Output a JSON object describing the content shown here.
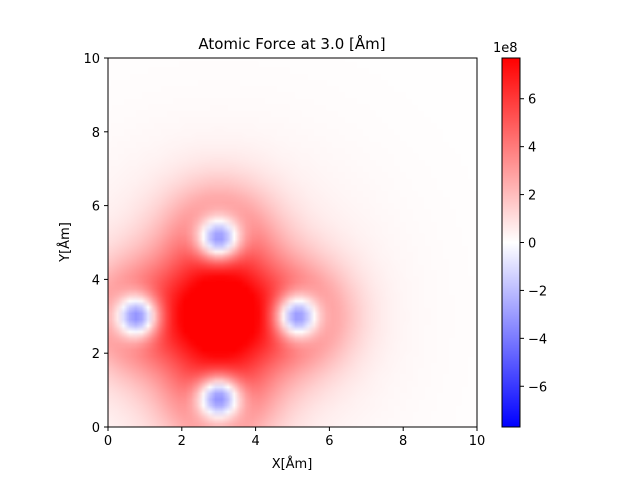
{
  "chart_data": {
    "type": "heatmap",
    "title": "Atomic Force at 3.0 [Åm]",
    "xlabel": "X[Åm]",
    "ylabel": "Y[Åm]",
    "xlim": [
      0,
      10
    ],
    "ylim": [
      0,
      10
    ],
    "x_ticks": [
      "0",
      "2",
      "4",
      "6",
      "8",
      "10"
    ],
    "y_ticks": [
      "0",
      "2",
      "4",
      "6",
      "8",
      "10"
    ],
    "colormap": "bwr",
    "colorbar": {
      "range": [
        -7.7,
        7.7
      ],
      "ticks": [
        "−6",
        "−4",
        "−2",
        "0",
        "2",
        "4",
        "6"
      ],
      "tick_values": [
        -6,
        -4,
        -2,
        0,
        2,
        4,
        6
      ],
      "offset_label": "1e8"
    },
    "atoms": [
      {
        "x": 3.0,
        "y": 3.0,
        "force": 7.6
      },
      {
        "x": 0.8,
        "y": 3.0,
        "force": -5.0
      },
      {
        "x": 5.1,
        "y": 3.0,
        "force": -5.0
      },
      {
        "x": 3.0,
        "y": 5.1,
        "force": -5.0
      },
      {
        "x": 3.0,
        "y": 0.8,
        "force": -5.0
      }
    ],
    "grid": false
  }
}
